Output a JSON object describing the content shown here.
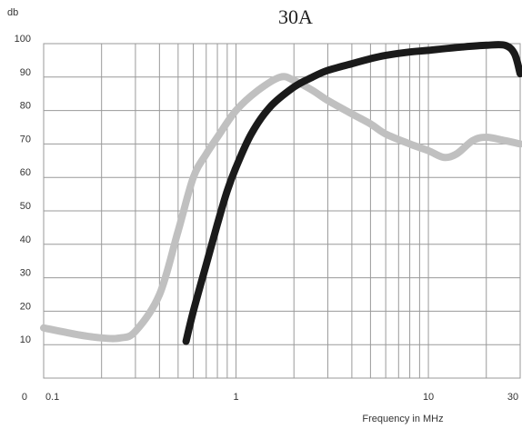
{
  "chart_data": {
    "type": "line",
    "title": "30A",
    "ylabel": "db",
    "xlabel": "Frequency in MHz",
    "x_scale": "log",
    "xlim": [
      0.1,
      30
    ],
    "ylim": [
      0,
      100
    ],
    "grid": true,
    "x_tick_labels": [
      {
        "value": 0.1,
        "label": "0.1"
      },
      {
        "value": 1,
        "label": "1"
      },
      {
        "value": 10,
        "label": "10"
      },
      {
        "value": 30,
        "label": "30"
      }
    ],
    "y_tick_labels": [
      {
        "value": 0,
        "label": "0"
      },
      {
        "value": 10,
        "label": "10"
      },
      {
        "value": 20,
        "label": "20"
      },
      {
        "value": 30,
        "label": "30"
      },
      {
        "value": 40,
        "label": "40"
      },
      {
        "value": 50,
        "label": "50"
      },
      {
        "value": 60,
        "label": "60"
      },
      {
        "value": 70,
        "label": "70"
      },
      {
        "value": 80,
        "label": "80"
      },
      {
        "value": 90,
        "label": "90"
      },
      {
        "value": 100,
        "label": "100"
      }
    ],
    "series": [
      {
        "color": "#c0c0c0",
        "x": [
          0.1,
          0.15,
          0.2,
          0.25,
          0.3,
          0.4,
          0.5,
          0.6,
          0.7,
          0.8,
          1.0,
          1.3,
          1.7,
          2.0,
          2.5,
          3.0,
          4.0,
          5.0,
          6.0,
          8.0,
          10,
          12,
          14,
          17,
          20,
          25,
          30
        ],
        "y": [
          15,
          13,
          12,
          12,
          14,
          25,
          44,
          60,
          67,
          72,
          80,
          86,
          90,
          89,
          86,
          83,
          79,
          76,
          73,
          70,
          68,
          66,
          67,
          71,
          72,
          71,
          70
        ]
      },
      {
        "color": "#1a1a1a",
        "x": [
          0.55,
          0.6,
          0.7,
          0.8,
          0.9,
          1.0,
          1.2,
          1.5,
          2.0,
          2.5,
          3.0,
          4.0,
          5.0,
          6.0,
          8.0,
          10,
          15,
          20,
          25,
          28,
          30
        ],
        "y": [
          11,
          20,
          34,
          46,
          56,
          63,
          73,
          81,
          87,
          90,
          92,
          94,
          95.5,
          96.5,
          97.5,
          98,
          99,
          99.5,
          99.5,
          97,
          91
        ]
      }
    ]
  }
}
